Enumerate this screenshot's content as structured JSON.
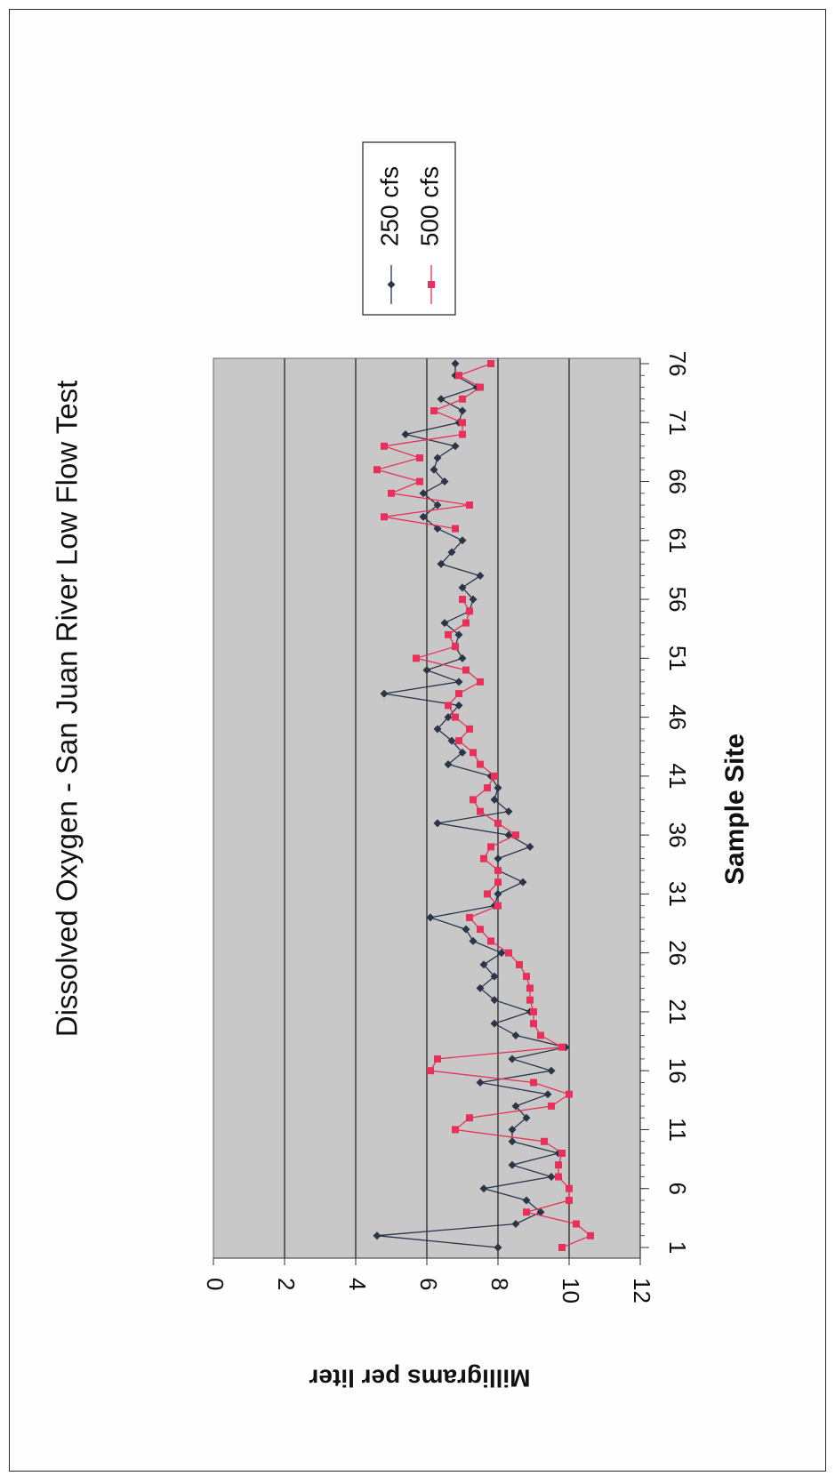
{
  "chart_data": {
    "type": "line",
    "title": "Dissolved Oxygen - San Juan River Low Flow Test",
    "xlabel": "Sample Site",
    "ylabel": "Milligrams per liter",
    "ylim": [
      0,
      12
    ],
    "yticks": [
      "0",
      "2",
      "4",
      "6",
      "8",
      "10",
      "12"
    ],
    "xticks": [
      "1",
      "6",
      "11",
      "16",
      "21",
      "26",
      "31",
      "36",
      "41",
      "46",
      "51",
      "56",
      "61",
      "66",
      "71",
      "76"
    ],
    "grid": true,
    "legend_position": "top-right",
    "series": [
      {
        "name": "250 cfs",
        "color": "#2a3547",
        "marker": "diamond",
        "x": [
          1,
          2,
          3,
          4,
          5,
          6,
          7,
          8,
          9,
          10,
          11,
          12,
          13,
          14,
          15,
          16,
          17,
          18,
          19,
          20,
          21,
          22,
          23,
          24,
          25,
          26,
          27,
          28,
          29,
          30,
          31,
          32,
          33,
          34,
          35,
          36,
          37,
          38,
          39,
          40,
          41,
          42,
          43,
          44,
          45,
          46,
          47,
          48,
          49,
          50,
          51,
          52,
          53,
          54,
          55,
          56,
          57,
          58,
          59,
          60,
          61,
          62,
          63,
          64,
          65,
          66,
          67,
          68,
          69,
          70,
          71,
          72,
          73,
          74,
          75,
          76
        ],
        "y": [
          8.0,
          4.6,
          8.5,
          9.2,
          8.8,
          7.6,
          9.5,
          8.4,
          9.7,
          8.4,
          8.4,
          8.8,
          8.5,
          9.4,
          7.5,
          9.5,
          8.4,
          9.9,
          8.5,
          7.9,
          8.9,
          7.9,
          7.5,
          7.9,
          7.6,
          8.1,
          7.3,
          7.1,
          6.1,
          7.9,
          8.0,
          8.7,
          8.0,
          8.0,
          8.9,
          8.3,
          6.3,
          8.3,
          7.9,
          8.0,
          7.8,
          6.6,
          7.0,
          6.7,
          6.3,
          6.6,
          6.9,
          4.8,
          6.9,
          6.0,
          7.0,
          6.8,
          6.9,
          6.5,
          7.2,
          7.3,
          7.0,
          7.5,
          6.4,
          6.7,
          7.0,
          6.3,
          5.9,
          6.3,
          5.9,
          6.5,
          6.2,
          6.3,
          6.8,
          5.4,
          6.9,
          7.0,
          6.4,
          7.4,
          6.8,
          6.8
        ]
      },
      {
        "name": "500 cfs",
        "color": "#e8315a",
        "marker": "square",
        "x": [
          1,
          2,
          3,
          4,
          5,
          6,
          7,
          8,
          9,
          10,
          11,
          12,
          13,
          14,
          15,
          16,
          17,
          18,
          19,
          20,
          21,
          22,
          23,
          24,
          25,
          26,
          27,
          28,
          29,
          30,
          31,
          32,
          33,
          34,
          35,
          36,
          37,
          38,
          39,
          40,
          41,
          42,
          43,
          44,
          45,
          46,
          47,
          48,
          49,
          50,
          51,
          52,
          53,
          54,
          55,
          56,
          57,
          58,
          59,
          60,
          61,
          62,
          63,
          64,
          65,
          66,
          67,
          68,
          69,
          70,
          71,
          72,
          73,
          74,
          75,
          76
        ],
        "y": [
          9.8,
          10.6,
          10.2,
          8.8,
          10.0,
          10.0,
          9.7,
          9.7,
          9.8,
          9.3,
          6.8,
          7.2,
          9.5,
          10.0,
          9.0,
          6.1,
          6.3,
          9.8,
          9.2,
          9.0,
          9.0,
          8.9,
          8.9,
          8.8,
          8.6,
          8.3,
          7.8,
          7.5,
          7.2,
          8.0,
          7.7,
          8.0,
          8.0,
          7.6,
          7.8,
          8.5,
          8.0,
          7.5,
          7.3,
          7.7,
          7.9,
          7.5,
          7.3,
          6.9,
          7.2,
          6.8,
          6.6,
          6.9,
          7.5,
          7.1,
          5.7,
          6.8,
          6.6,
          7.1,
          7.2,
          7.0,
          null,
          null,
          null,
          null,
          null,
          6.8,
          4.8,
          7.2,
          5.0,
          5.8,
          4.6,
          5.8,
          4.8,
          7.0,
          7.0,
          6.2,
          7.0,
          7.5,
          6.9,
          7.8
        ]
      }
    ]
  }
}
